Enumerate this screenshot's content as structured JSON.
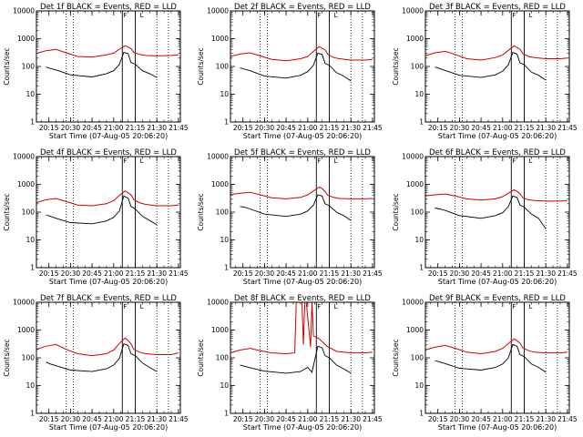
{
  "chart_data": {
    "type": "line",
    "ylabel": "Counts/sec",
    "xlabel": "Start Time (07-Aug-05 20:06:20)",
    "x_ticks": [
      "20:15",
      "20:30",
      "20:45",
      "21:00",
      "21:15",
      "21:30",
      "21:45"
    ],
    "y_ticks": [
      "1",
      "10",
      "100",
      "1000",
      "10000"
    ],
    "y_scale": "log",
    "ylim": [
      1,
      10000
    ],
    "xlim": [
      "20:06:20",
      "21:46:20"
    ],
    "markers": {
      "start_marker": "F",
      "end_marker": "L"
    },
    "colors": {
      "events": "#000000",
      "lld": "#d00000"
    },
    "panels": [
      {
        "title": "Det 1f BLACK = Events, RED = LLD",
        "lld": {
          "time": [
            "20:06",
            "20:13",
            "20:20",
            "20:27",
            "20:35",
            "20:45",
            "20:55",
            "21:00",
            "21:04",
            "21:08",
            "21:10",
            "21:12",
            "21:14",
            "21:18",
            "21:22",
            "21:30",
            "21:40",
            "21:45"
          ],
          "values": [
            290,
            370,
            410,
            310,
            230,
            220,
            260,
            300,
            420,
            560,
            500,
            440,
            320,
            270,
            250,
            240,
            250,
            260
          ]
        },
        "events": {
          "time": [
            "20:13",
            "20:16",
            "20:20",
            "20:30",
            "20:45",
            "20:55",
            "21:00",
            "21:04",
            "21:07",
            "21:10",
            "21:12",
            "21:15",
            "21:20",
            "21:25",
            "21:30"
          ],
          "values": [
            95,
            85,
            75,
            50,
            42,
            55,
            70,
            120,
            320,
            290,
            140,
            120,
            70,
            55,
            40
          ]
        },
        "vlines_dotted": [
          "20:27",
          "20:32",
          "21:30",
          "21:38"
        ],
        "vlines_solid": [
          "21:06",
          "21:15"
        ]
      },
      {
        "title": "Det 2f BLACK = Events, RED = LLD",
        "lld": {
          "time": [
            "20:06",
            "20:13",
            "20:20",
            "20:27",
            "20:35",
            "20:45",
            "20:55",
            "21:00",
            "21:04",
            "21:08",
            "21:10",
            "21:12",
            "21:14",
            "21:18",
            "21:22",
            "21:30",
            "21:40",
            "21:45"
          ],
          "values": [
            230,
            280,
            310,
            240,
            180,
            160,
            190,
            230,
            350,
            520,
            450,
            400,
            270,
            210,
            190,
            170,
            170,
            180
          ]
        },
        "events": {
          "time": [
            "20:13",
            "20:16",
            "20:20",
            "20:30",
            "20:45",
            "20:55",
            "21:00",
            "21:04",
            "21:07",
            "21:10",
            "21:12",
            "21:15",
            "21:20",
            "21:25",
            "21:30"
          ],
          "values": [
            90,
            80,
            70,
            45,
            38,
            48,
            65,
            110,
            300,
            270,
            130,
            110,
            60,
            45,
            30
          ]
        },
        "vlines_dotted": [
          "20:27",
          "20:32",
          "21:30",
          "21:38"
        ],
        "vlines_solid": [
          "21:06",
          "21:15"
        ]
      },
      {
        "title": "Det 3f BLACK = Events, RED = LLD",
        "lld": {
          "time": [
            "20:06",
            "20:13",
            "20:20",
            "20:27",
            "20:35",
            "20:45",
            "20:55",
            "21:00",
            "21:04",
            "21:08",
            "21:10",
            "21:12",
            "21:14",
            "21:18",
            "21:22",
            "21:30",
            "21:40",
            "21:45"
          ],
          "values": [
            240,
            310,
            350,
            270,
            190,
            170,
            210,
            260,
            380,
            560,
            480,
            420,
            290,
            230,
            210,
            190,
            190,
            200
          ]
        },
        "events": {
          "time": [
            "20:13",
            "20:16",
            "20:20",
            "20:30",
            "20:45",
            "20:55",
            "21:00",
            "21:04",
            "21:07",
            "21:10",
            "21:12",
            "21:15",
            "21:20",
            "21:25",
            "21:30"
          ],
          "values": [
            95,
            85,
            72,
            48,
            40,
            50,
            68,
            115,
            320,
            280,
            135,
            115,
            62,
            48,
            32
          ]
        },
        "vlines_dotted": [
          "20:27",
          "20:32",
          "21:30",
          "21:38"
        ],
        "vlines_solid": [
          "21:06",
          "21:15"
        ]
      },
      {
        "title": "Det 4f BLACK = Events, RED = LLD",
        "lld": {
          "time": [
            "20:06",
            "20:13",
            "20:20",
            "20:27",
            "20:35",
            "20:45",
            "20:55",
            "21:00",
            "21:04",
            "21:08",
            "21:10",
            "21:12",
            "21:14",
            "21:18",
            "21:22",
            "21:30",
            "21:40",
            "21:45"
          ],
          "values": [
            220,
            280,
            310,
            240,
            180,
            170,
            200,
            260,
            400,
            580,
            500,
            420,
            280,
            220,
            190,
            170,
            170,
            180
          ]
        },
        "events": {
          "time": [
            "20:13",
            "20:16",
            "20:20",
            "20:30",
            "20:45",
            "20:55",
            "21:00",
            "21:04",
            "21:07",
            "21:10",
            "21:12",
            "21:15",
            "21:20",
            "21:25",
            "21:30"
          ],
          "values": [
            80,
            70,
            60,
            42,
            38,
            48,
            65,
            110,
            380,
            320,
            160,
            130,
            70,
            50,
            35
          ]
        },
        "vlines_dotted": [
          "20:27",
          "20:32",
          "21:30",
          "21:38"
        ],
        "vlines_solid": [
          "21:06",
          "21:15"
        ]
      },
      {
        "title": "Det 5f BLACK = Events, RED = LLD",
        "lld": {
          "time": [
            "20:06",
            "20:13",
            "20:20",
            "20:27",
            "20:35",
            "20:45",
            "20:55",
            "21:00",
            "21:04",
            "21:08",
            "21:10",
            "21:12",
            "21:14",
            "21:18",
            "21:22",
            "21:30",
            "21:40",
            "21:45"
          ],
          "values": [
            430,
            480,
            520,
            420,
            330,
            300,
            340,
            420,
            580,
            800,
            700,
            560,
            400,
            340,
            310,
            300,
            300,
            310
          ]
        },
        "events": {
          "time": [
            "20:13",
            "20:16",
            "20:20",
            "20:30",
            "20:45",
            "20:55",
            "21:00",
            "21:04",
            "21:07",
            "21:10",
            "21:12",
            "21:15",
            "21:20",
            "21:25",
            "21:30"
          ],
          "values": [
            160,
            150,
            130,
            85,
            70,
            85,
            110,
            180,
            420,
            380,
            200,
            170,
            100,
            75,
            50
          ]
        },
        "vlines_dotted": [
          "20:27",
          "20:32",
          "21:30",
          "21:38"
        ],
        "vlines_solid": [
          "21:06",
          "21:15"
        ]
      },
      {
        "title": "Det 6f BLACK = Events, RED = LLD",
        "lld": {
          "time": [
            "20:06",
            "20:13",
            "20:20",
            "20:27",
            "20:35",
            "20:45",
            "20:55",
            "21:00",
            "21:04",
            "21:08",
            "21:10",
            "21:12",
            "21:14",
            "21:18",
            "21:22",
            "21:30",
            "21:40",
            "21:45"
          ],
          "values": [
            380,
            420,
            450,
            380,
            300,
            270,
            300,
            360,
            480,
            640,
            560,
            460,
            330,
            280,
            260,
            250,
            250,
            260
          ]
        },
        "events": {
          "time": [
            "20:13",
            "20:16",
            "20:20",
            "20:30",
            "20:45",
            "20:55",
            "21:00",
            "21:04",
            "21:07",
            "21:10",
            "21:12",
            "21:15",
            "21:20",
            "21:25",
            "21:30"
          ],
          "values": [
            140,
            130,
            115,
            75,
            60,
            75,
            95,
            160,
            380,
            340,
            180,
            150,
            85,
            60,
            25
          ]
        },
        "vlines_dotted": [
          "20:27",
          "20:32",
          "21:30",
          "21:38"
        ],
        "vlines_solid": [
          "21:06",
          "21:15"
        ]
      },
      {
        "title": "Det 7f BLACK = Events, RED = LLD",
        "lld": {
          "time": [
            "20:06",
            "20:13",
            "20:20",
            "20:27",
            "20:35",
            "20:45",
            "20:55",
            "21:00",
            "21:04",
            "21:08",
            "21:10",
            "21:12",
            "21:14",
            "21:18",
            "21:22",
            "21:30",
            "21:40",
            "21:45"
          ],
          "values": [
            200,
            260,
            300,
            200,
            140,
            120,
            140,
            190,
            330,
            520,
            420,
            320,
            200,
            160,
            140,
            130,
            130,
            150
          ]
        },
        "events": {
          "time": [
            "20:13",
            "20:16",
            "20:20",
            "20:30",
            "20:45",
            "20:55",
            "21:00",
            "21:04",
            "21:07",
            "21:10",
            "21:12",
            "21:15",
            "21:20",
            "21:25",
            "21:30"
          ],
          "values": [
            70,
            60,
            52,
            36,
            32,
            40,
            55,
            95,
            320,
            280,
            140,
            120,
            65,
            45,
            32
          ]
        },
        "vlines_dotted": [
          "20:27",
          "20:32",
          "21:30",
          "21:38"
        ],
        "vlines_solid": [
          "21:06",
          "21:15"
        ]
      },
      {
        "title": "Det 8f BLACK = Events, RED = LLD",
        "lld": {
          "time": [
            "20:06",
            "20:13",
            "20:20",
            "20:27",
            "20:35",
            "20:45",
            "20:51",
            "20:52",
            "20:56",
            "20:57",
            "20:58",
            "20:59",
            "21:02",
            "21:03",
            "21:04",
            "21:06",
            "21:08",
            "21:10",
            "21:14",
            "21:20",
            "21:30",
            "21:40",
            "21:45"
          ],
          "values": [
            150,
            190,
            220,
            180,
            150,
            140,
            150,
            10000,
            10000,
            300,
            10000,
            10000,
            250,
            10000,
            600,
            560,
            480,
            380,
            250,
            170,
            150,
            150,
            160
          ]
        },
        "events": {
          "time": [
            "20:13",
            "20:16",
            "20:20",
            "20:30",
            "20:45",
            "20:55",
            "21:00",
            "21:03",
            "21:05",
            "21:07",
            "21:10",
            "21:12",
            "21:15",
            "21:20",
            "21:25",
            "21:30"
          ],
          "values": [
            55,
            50,
            44,
            33,
            28,
            32,
            45,
            30,
            90,
            260,
            230,
            120,
            100,
            55,
            40,
            28
          ]
        },
        "vlines_dotted": [
          "20:27",
          "20:32",
          "21:30",
          "21:38"
        ],
        "vlines_solid": [
          "21:06",
          "21:15"
        ]
      },
      {
        "title": "Det 9f BLACK = Events, RED = LLD",
        "lld": {
          "time": [
            "20:06",
            "20:13",
            "20:20",
            "20:27",
            "20:35",
            "20:45",
            "20:55",
            "21:00",
            "21:04",
            "21:08",
            "21:10",
            "21:12",
            "21:14",
            "21:18",
            "21:22",
            "21:30",
            "21:40",
            "21:45"
          ],
          "values": [
            190,
            240,
            280,
            220,
            160,
            140,
            170,
            220,
            330,
            480,
            410,
            340,
            230,
            180,
            160,
            150,
            150,
            160
          ]
        },
        "events": {
          "time": [
            "20:13",
            "20:16",
            "20:20",
            "20:30",
            "20:45",
            "20:55",
            "21:00",
            "21:04",
            "21:07",
            "21:10",
            "21:12",
            "21:15",
            "21:20",
            "21:25",
            "21:30"
          ],
          "values": [
            80,
            72,
            62,
            42,
            36,
            45,
            60,
            100,
            300,
            260,
            130,
            110,
            60,
            45,
            30
          ]
        },
        "vlines_dotted": [
          "20:27",
          "20:32",
          "21:30",
          "21:38"
        ],
        "vlines_solid": [
          "21:06",
          "21:15"
        ]
      }
    ]
  }
}
